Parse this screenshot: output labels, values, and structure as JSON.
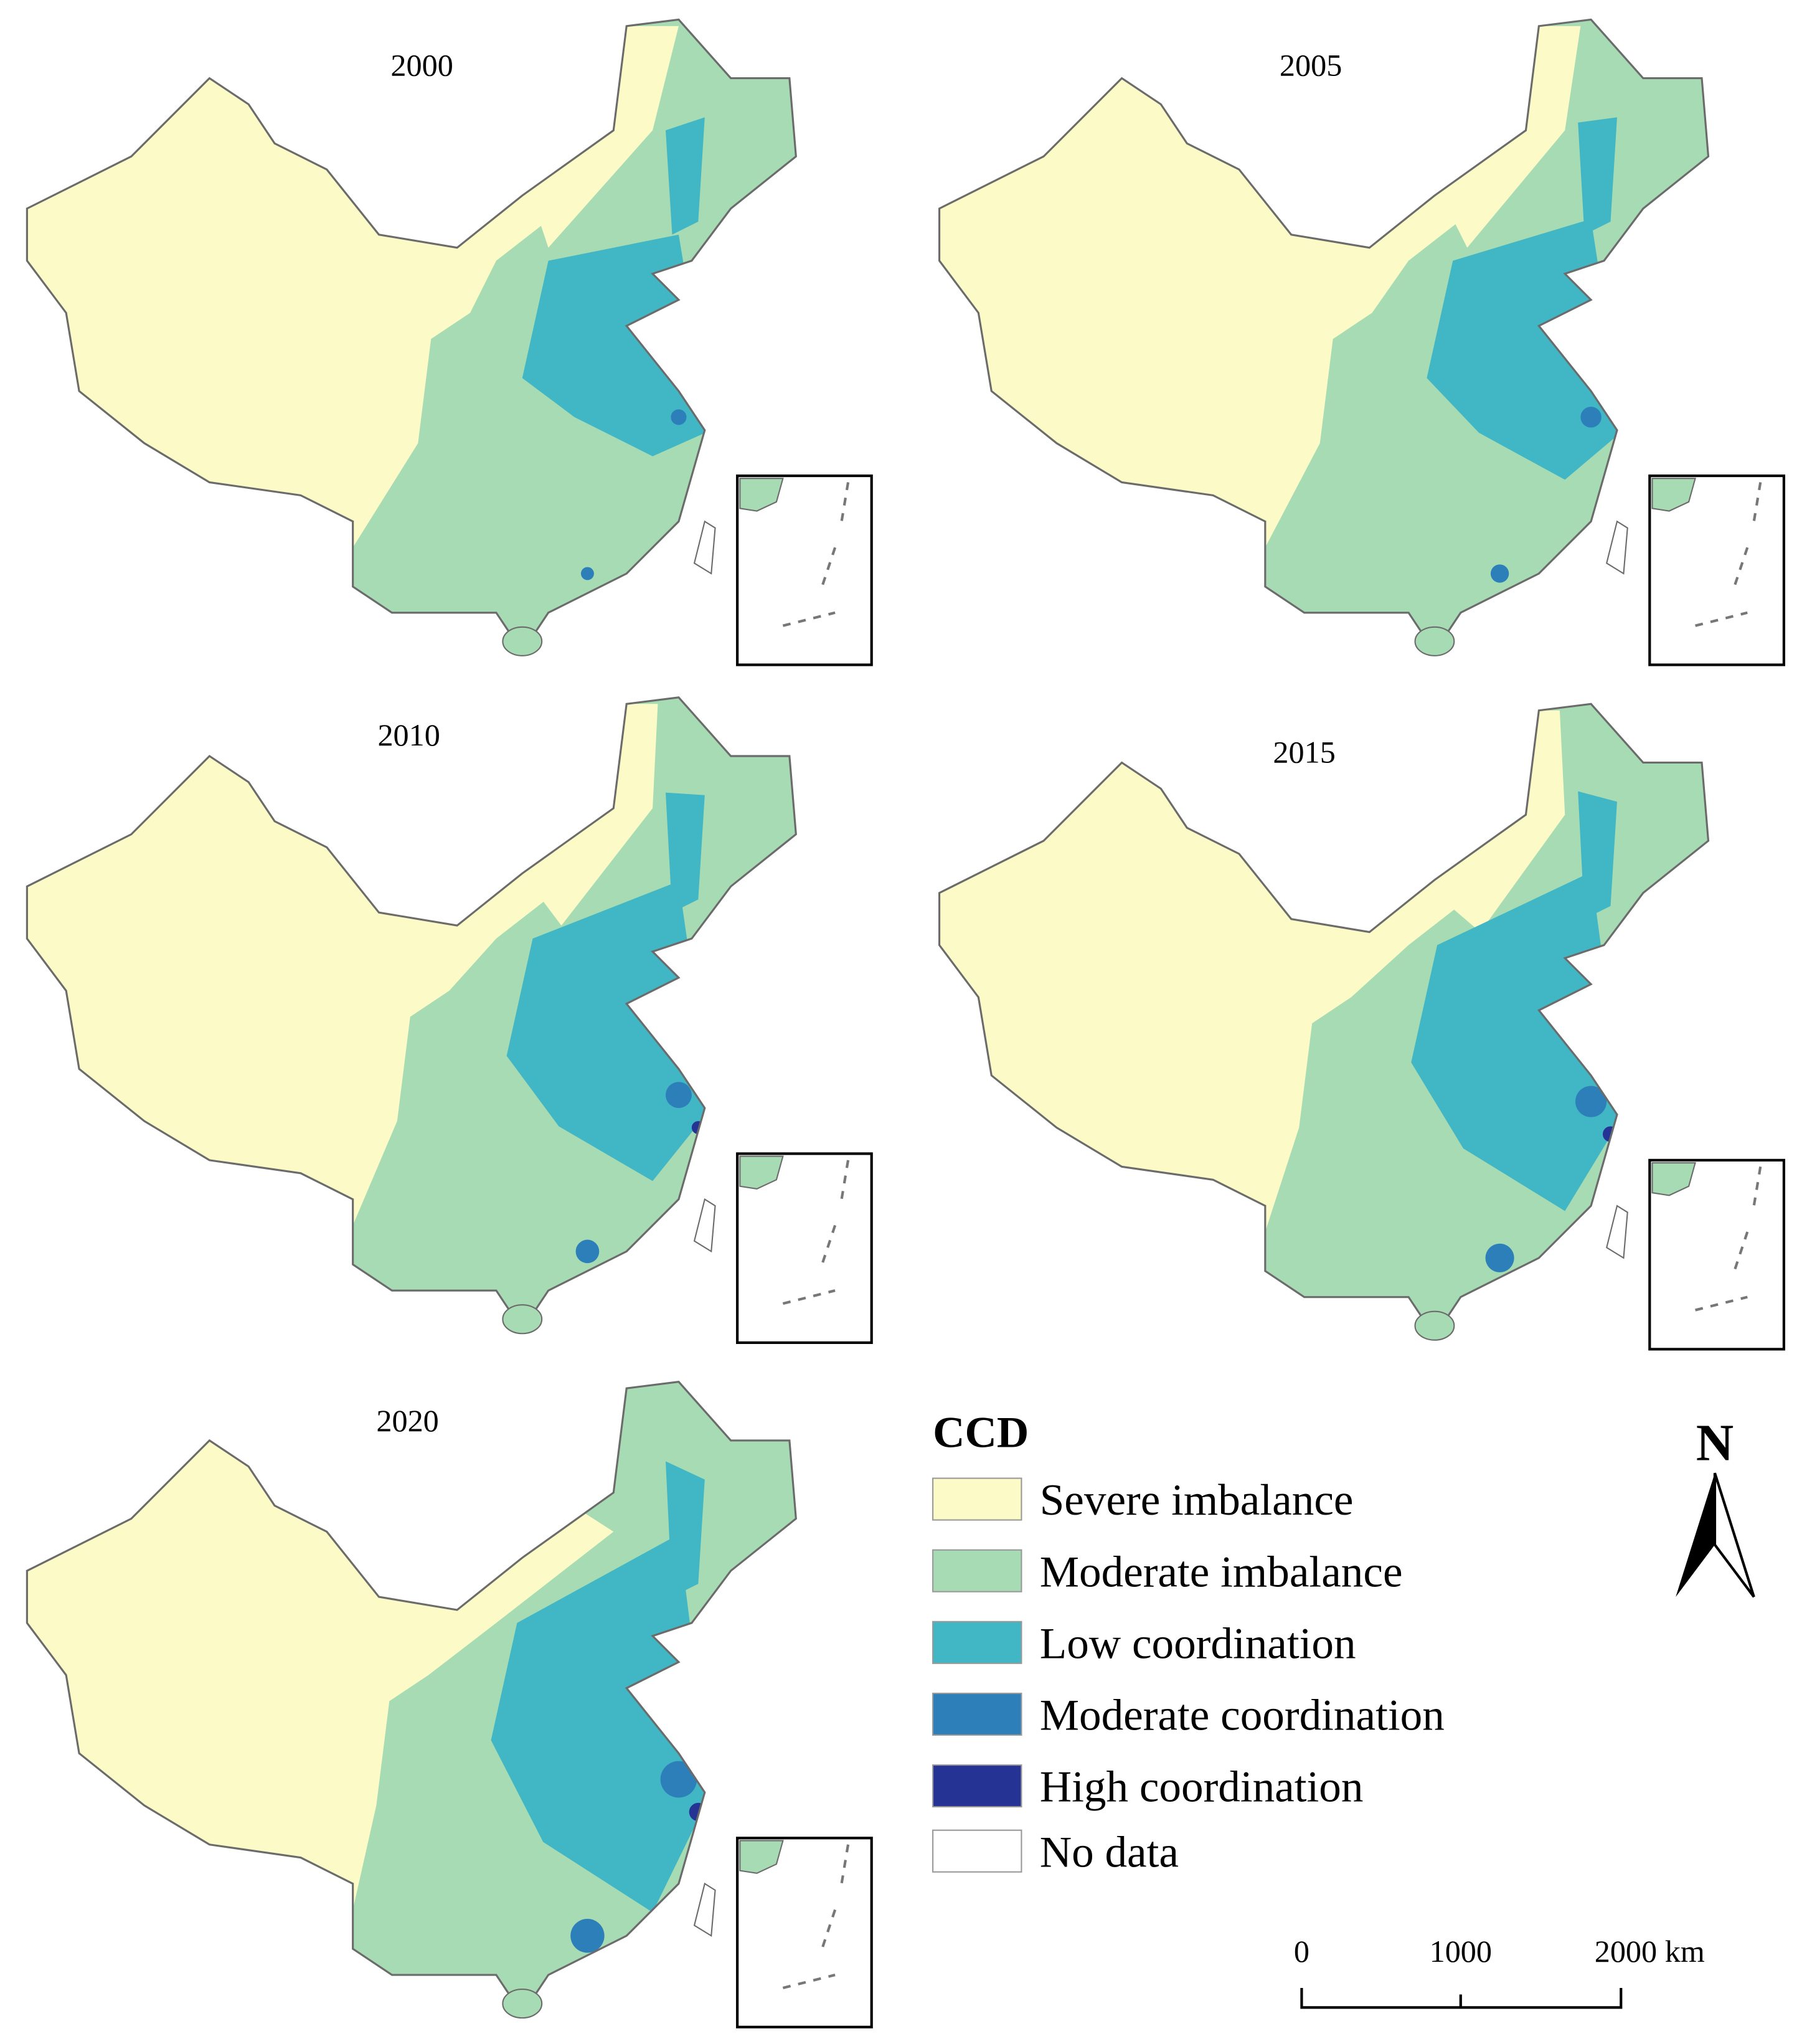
{
  "panels": [
    {
      "year": "2000"
    },
    {
      "year": "2005"
    },
    {
      "year": "2010"
    },
    {
      "year": "2015"
    },
    {
      "year": "2020"
    }
  ],
  "legend": {
    "title": "CCD",
    "items": [
      {
        "label": "Severe imbalance",
        "color": "#fcfbc8"
      },
      {
        "label": "Moderate imbalance",
        "color": "#a7dbb4"
      },
      {
        "label": "Low coordination",
        "color": "#41b6c4"
      },
      {
        "label": "Moderate coordination",
        "color": "#2c7fb8"
      },
      {
        "label": "High coordination",
        "color": "#253494"
      },
      {
        "label": "No data",
        "color": "#ffffff"
      }
    ]
  },
  "north_arrow": {
    "label": "N"
  },
  "scale_bar": {
    "labels": [
      "0",
      "1000",
      "2000 km"
    ]
  }
}
